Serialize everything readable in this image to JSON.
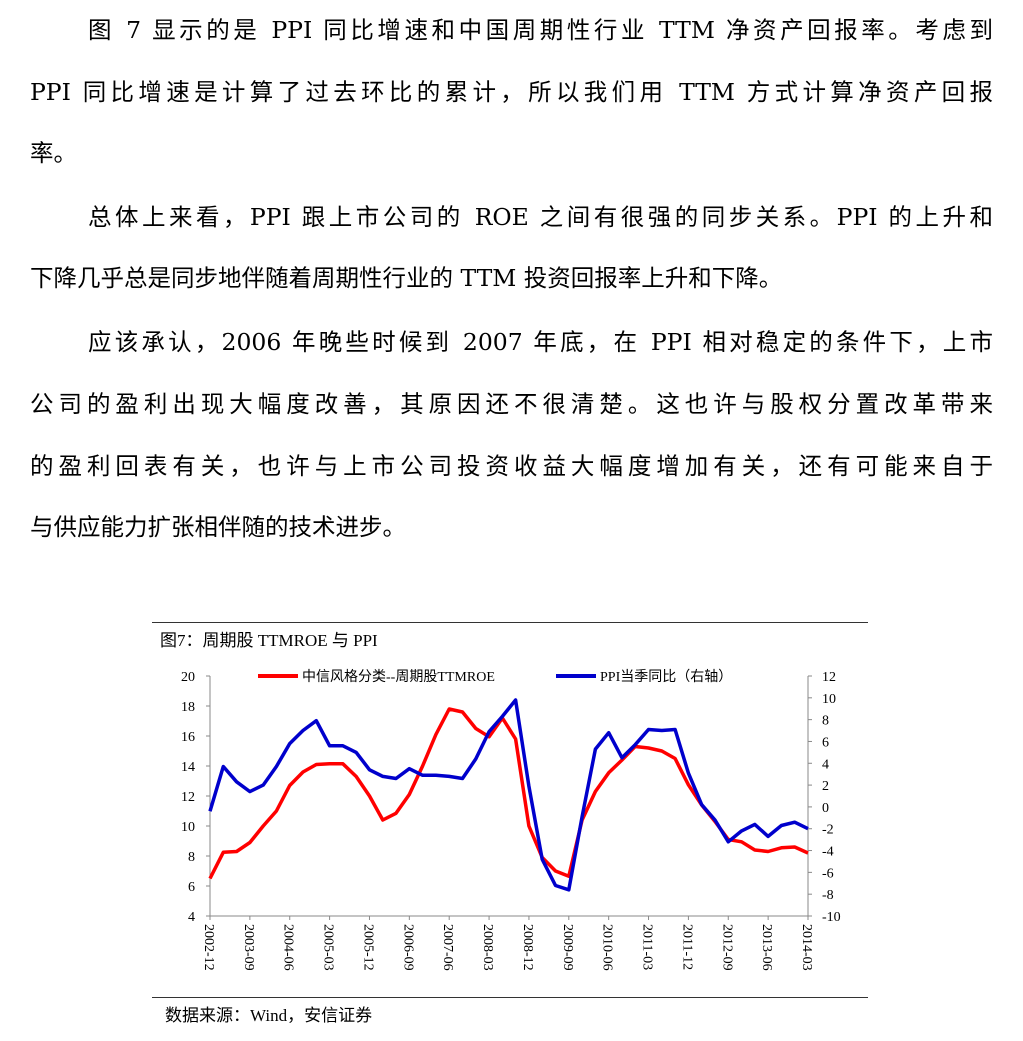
{
  "paragraphs": [
    {
      "lines": [
        "图 7 显示的是 PPI 同比增速和中国周期性行业 TTM 净资产回报率。考虑到",
        "PPI 同比增速是计算了过去环比的累计，所以我们用 TTM 方式计算净资产回报",
        "率。"
      ]
    },
    {
      "lines": [
        "总体上来看，PPI 跟上市公司的 ROE 之间有很强的同步关系。PPI 的上升和",
        "下降几乎总是同步地伴随着周期性行业的 TTM 投资回报率上升和下降。"
      ]
    },
    {
      "lines": [
        "应该承认，2006 年晚些时候到 2007 年底，在 PPI 相对稳定的条件下，上市",
        "公司的盈利出现大幅度改善，其原因还不很清楚。这也许与股权分置改革带来",
        "的盈利回表有关，也许与上市公司投资收益大幅度增加有关，还有可能来自于",
        "与供应能力扩张相伴随的技术进步。"
      ]
    }
  ],
  "figure": {
    "title": "图7：周期股 TTMROE 与 PPI",
    "source": "数据来源：Wind，安信证券"
  },
  "chart_data": {
    "type": "line",
    "title": "",
    "x_tick_labels": [
      "2002-12",
      "2003-09",
      "2004-06",
      "2005-03",
      "2005-12",
      "2006-09",
      "2007-06",
      "2008-03",
      "2008-12",
      "2009-09",
      "2010-06",
      "2011-03",
      "2011-12",
      "2012-09",
      "2013-06",
      "2014-03"
    ],
    "x_frequency": "quarterly",
    "x_range": [
      "2002-12",
      "2014-03"
    ],
    "left_axis": {
      "range": [
        4,
        20
      ],
      "ticks": [
        4,
        6,
        8,
        10,
        12,
        14,
        16,
        18,
        20
      ]
    },
    "right_axis": {
      "range": [
        -10,
        12
      ],
      "ticks": [
        -10,
        -8,
        -6,
        -4,
        -2,
        0,
        2,
        4,
        6,
        8,
        10,
        12
      ]
    },
    "legend_position": "top",
    "grid": false,
    "series": [
      {
        "name": "中信风格分类--周期股TTMROE",
        "axis": "left",
        "color": "#ff0000",
        "values": [
          6.5,
          8.25,
          8.3,
          8.9,
          10.0,
          11.0,
          12.7,
          13.6,
          14.1,
          14.15,
          14.15,
          13.3,
          12.0,
          10.4,
          10.85,
          12.1,
          14.0,
          16.1,
          17.8,
          17.6,
          16.5,
          15.95,
          17.2,
          15.8,
          10.0,
          7.9,
          7.0,
          6.65,
          10.4,
          12.3,
          13.55,
          14.4,
          15.3,
          15.2,
          15.0,
          14.5,
          12.75,
          11.4,
          10.3,
          9.1,
          8.95,
          8.4,
          8.3,
          8.55,
          8.6,
          8.2
        ]
      },
      {
        "name": "PPI当季同比（右轴）",
        "axis": "right",
        "color": "#0000cc",
        "values": [
          -0.4,
          3.7,
          2.3,
          1.4,
          2.0,
          3.7,
          5.8,
          7.0,
          7.9,
          5.6,
          5.6,
          5.0,
          3.4,
          2.8,
          2.6,
          3.5,
          2.9,
          2.9,
          2.8,
          2.6,
          4.4,
          6.9,
          8.3,
          9.8,
          1.9,
          -4.8,
          -7.2,
          -7.6,
          -0.9,
          5.3,
          6.8,
          4.5,
          5.7,
          7.1,
          7.0,
          7.1,
          3.1,
          0.2,
          -1.2,
          -3.2,
          -2.2,
          -1.6,
          -2.7,
          -1.7,
          -1.4,
          -2.0
        ]
      }
    ]
  }
}
